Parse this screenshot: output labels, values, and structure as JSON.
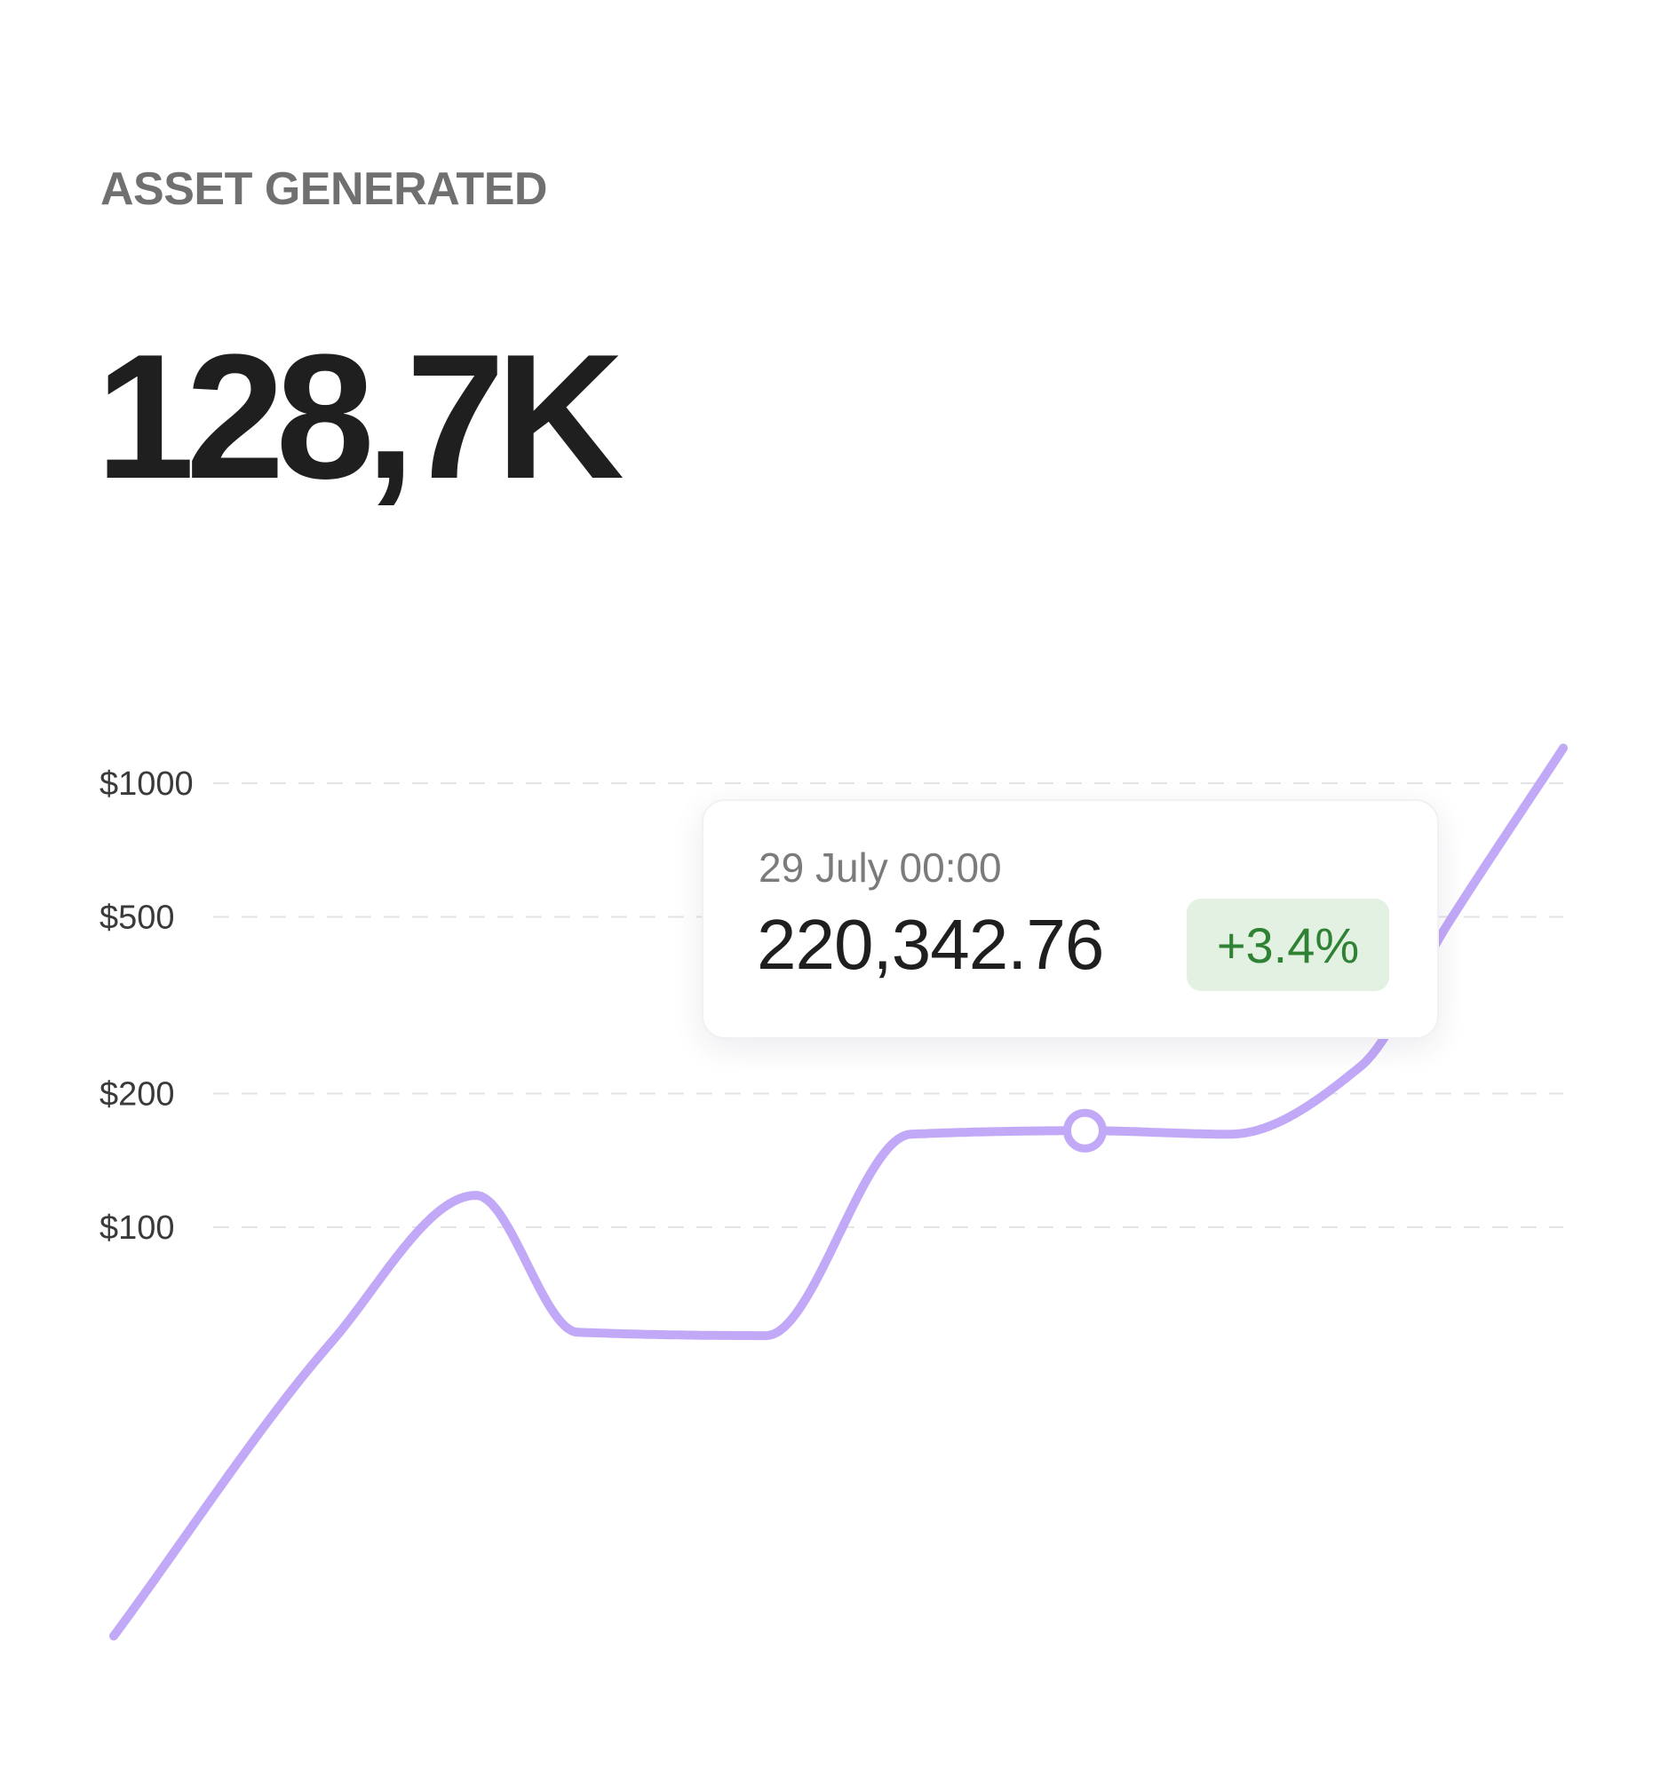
{
  "card": {
    "title": "ASSET GENERATED",
    "total": "128,7K"
  },
  "tooltip": {
    "date": "29 July 00:00",
    "value": "220,342.76",
    "change": "+3.4%"
  },
  "colors": {
    "line": "#c2a9f8",
    "fill_bars": "#e6ddfc",
    "gridline": "#e4e4e7",
    "badge_bg": "#e3f1e2",
    "badge_text": "#2f8233"
  },
  "chart_data": {
    "type": "area",
    "title": "",
    "xlabel": "",
    "ylabel": "",
    "y_scale": "log",
    "y_ticks": [
      {
        "label": "$1000",
        "value": 1000
      },
      {
        "label": "$500",
        "value": 500
      },
      {
        "label": "$200",
        "value": 200
      },
      {
        "label": "$100",
        "value": 100
      }
    ],
    "grid": "horizontal dashed",
    "series": [
      {
        "x": [
          0,
          0.15,
          0.25,
          0.32,
          0.45,
          0.55,
          0.67,
          0.77,
          0.86,
          0.92,
          1.0
        ],
        "values": [
          12,
          55,
          118,
          58,
          57,
          162,
          165,
          162,
          230,
          480,
          1200
        ]
      }
    ],
    "highlight": {
      "x": 0.67,
      "value": 165
    }
  }
}
